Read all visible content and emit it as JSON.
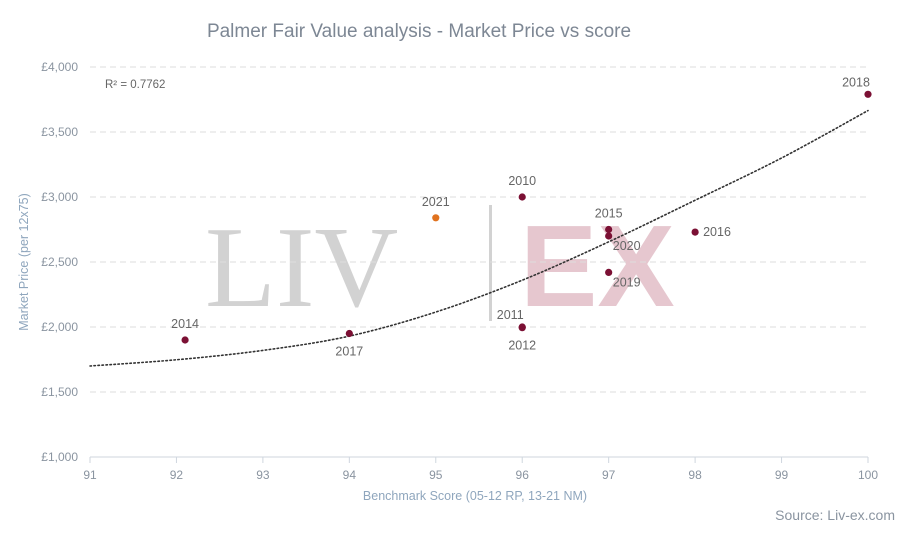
{
  "chart_data": {
    "type": "scatter",
    "title": "Palmer Fair Value analysis - Market Price vs score",
    "xlabel": "Benchmark Score (05-12 RP, 13-21 NM)",
    "ylabel": "Market Price (per 12x75)",
    "xlim": [
      91,
      100
    ],
    "ylim": [
      1000,
      4000
    ],
    "x_ticks": [
      91,
      92,
      93,
      94,
      95,
      96,
      97,
      98,
      99,
      100
    ],
    "y_ticks": [
      1000,
      1500,
      2000,
      2500,
      3000,
      3500,
      4000
    ],
    "y_tick_labels": [
      "£1,000",
      "£1,500",
      "£2,000",
      "£2,500",
      "£3,000",
      "£3,500",
      "£4,000"
    ],
    "grid": "horizontal dashed",
    "annotation": "R² = 0.7762",
    "trendline": {
      "type": "exponential",
      "style": "dotted",
      "color": "#333333",
      "points": [
        [
          91,
          1700
        ],
        [
          92,
          1748
        ],
        [
          93,
          1820
        ],
        [
          94,
          1930
        ],
        [
          95,
          2115
        ],
        [
          96,
          2360
        ],
        [
          97,
          2655
        ],
        [
          98,
          2975
        ],
        [
          99,
          3300
        ],
        [
          100,
          3665
        ]
      ]
    },
    "series": [
      {
        "points": [
          {
            "label": "2014",
            "x": 92.1,
            "y": 1900,
            "color": "#7b1034",
            "label_pos": "above"
          },
          {
            "label": "2017",
            "x": 94,
            "y": 1950,
            "color": "#7b1034",
            "label_pos": "below"
          },
          {
            "label": "2021",
            "x": 95,
            "y": 2840,
            "color": "#e0721f",
            "label_pos": "above"
          },
          {
            "label": "2010",
            "x": 96,
            "y": 3000,
            "color": "#7b1034",
            "label_pos": "above"
          },
          {
            "label": "2011",
            "x": 96,
            "y": 2000,
            "color": "#7b1034",
            "label_pos": "above-left"
          },
          {
            "label": "2012",
            "x": 96,
            "y": 1995,
            "color": "#7b1034",
            "label_pos": "below"
          },
          {
            "label": "2015",
            "x": 97,
            "y": 2750,
            "color": "#7b1034",
            "label_pos": "above"
          },
          {
            "label": "2020",
            "x": 97,
            "y": 2700,
            "color": "#7b1034",
            "label_pos": "below-right"
          },
          {
            "label": "2019",
            "x": 97,
            "y": 2420,
            "color": "#7b1034",
            "label_pos": "below-right"
          },
          {
            "label": "2016",
            "x": 98,
            "y": 2730,
            "color": "#7b1034",
            "label_pos": "right"
          },
          {
            "label": "2018",
            "x": 100,
            "y": 3790,
            "color": "#7b1034",
            "label_pos": "above-left"
          }
        ]
      }
    ]
  },
  "watermark": {
    "left": "LIV",
    "right": "EX"
  },
  "source": "Source: Liv-ex.com",
  "colors": {
    "point": "#7b1034",
    "highlight": "#e0721f",
    "grid": "#dddddd",
    "title": "#7d8794"
  }
}
